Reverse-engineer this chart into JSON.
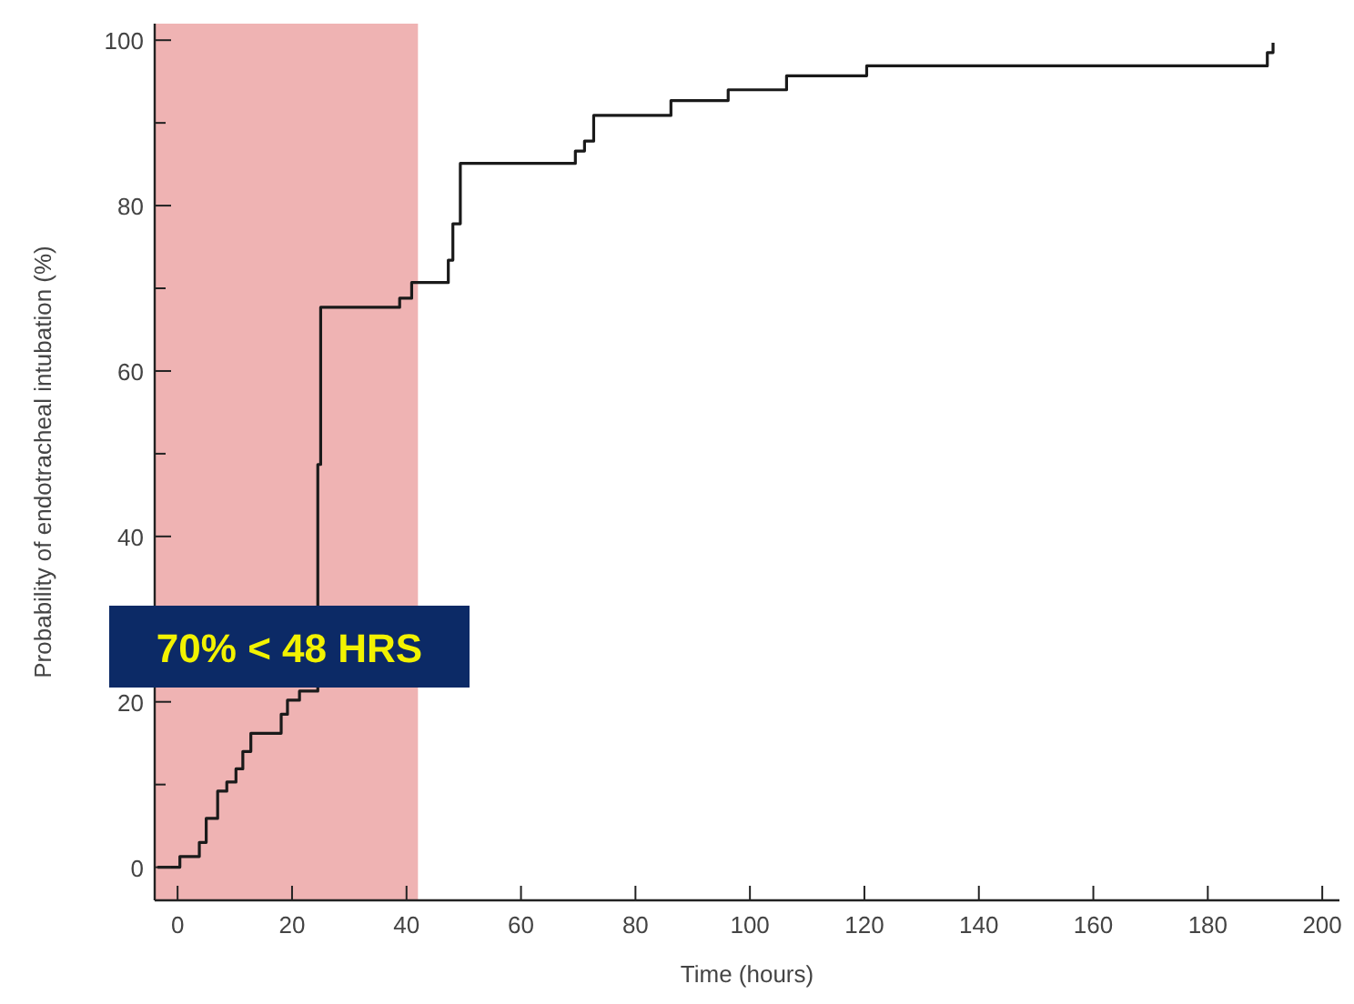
{
  "chart_data": {
    "type": "step",
    "xlabel": "Time (hours)",
    "ylabel": "Probability of endotracheal intubation (%)",
    "x": [
      -3.5,
      0.4,
      3.8,
      5,
      7,
      8.6,
      10.2,
      11.4,
      12.8,
      18.1,
      19.2,
      21.3,
      22.4,
      24.5,
      25,
      38.8,
      40.9,
      47.3,
      48.1,
      49.4,
      69.5,
      71.1,
      72.7,
      86.2,
      96.2,
      106.4,
      120.4,
      190.4,
      191.4
    ],
    "series": [
      {
        "color": "#1a1a1a",
        "values": [
          0,
          1.3,
          3,
          5.9,
          9.2,
          10.3,
          11.9,
          14,
          16.2,
          18.5,
          20.2,
          21.3,
          null,
          48.7,
          67.7,
          68.8,
          70.7,
          73.4,
          77.8,
          85.1,
          86.6,
          87.8,
          90.9,
          92.7,
          94,
          95.7,
          96.9,
          98.5,
          99.7
        ]
      }
    ],
    "xlim": [
      -4,
      203
    ],
    "ylim": [
      -4,
      102
    ],
    "xticks": [
      0,
      20,
      40,
      60,
      80,
      100,
      120,
      140,
      160,
      180,
      200
    ],
    "yticks": [
      0,
      {
        "value": 10,
        "label": null
      },
      20,
      {
        "value": 30,
        "label": null
      },
      40,
      {
        "value": 50,
        "label": null
      },
      60,
      {
        "value": 70,
        "label": null
      },
      80,
      {
        "value": 90,
        "label": null
      },
      100
    ],
    "bands": [
      {
        "axis": "x",
        "from": -4,
        "to": 42,
        "color": "#efb3b3"
      }
    ],
    "annotations": [
      "70% < 48 HRS"
    ],
    "grid": false,
    "marker": "none",
    "line_style": "solid"
  }
}
